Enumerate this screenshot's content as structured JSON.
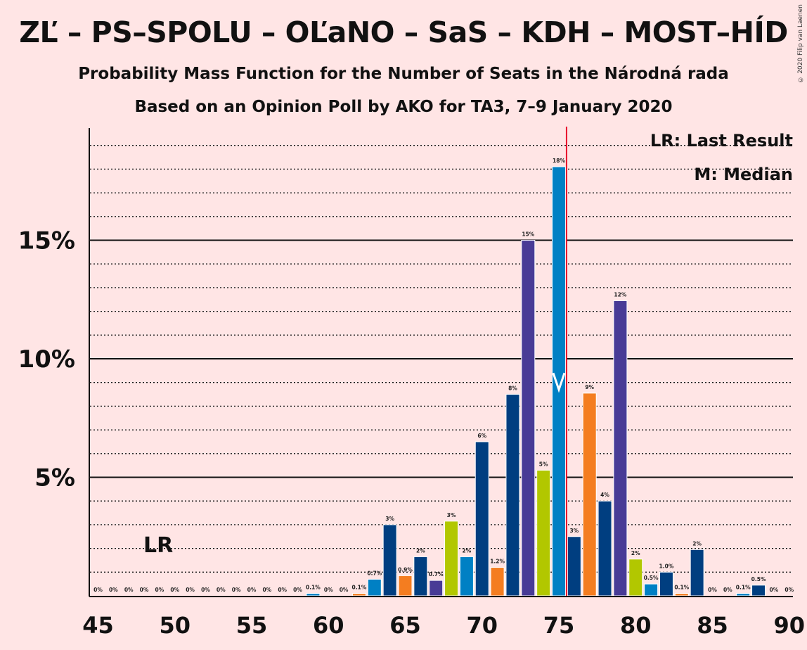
{
  "title": "ZĽ – PS–SPOLU – OĽaNO – SaS – KDH – MOST–HÍD",
  "subtitle1": "Probability Mass Function for the Number of Seats in the Národná rada",
  "subtitle2": "Based on an Opinion Poll by AKO for TA3, 7–9 January 2020",
  "copyright": "© 2020 Filip van Laenen",
  "legend": {
    "lr": "LR: Last Result",
    "m": "M: Median"
  },
  "lr_label": "LR",
  "median_label": "M",
  "colors": {
    "background": "#ffe5e5",
    "last_result_line": "#e8002a",
    "bar_palette": [
      "#0080c4",
      "#f47d20",
      "#003e80",
      "#483b96",
      "#b2c700",
      "#0069b1"
    ]
  },
  "chart_data": {
    "type": "bar",
    "xlabel": "",
    "ylabel": "",
    "xlim": [
      45,
      90
    ],
    "ylim": [
      0,
      19
    ],
    "y_ticks": [
      {
        "value": 5,
        "label": "5%"
      },
      {
        "value": 10,
        "label": "10%"
      },
      {
        "value": 15,
        "label": "15%"
      }
    ],
    "x_ticks": [
      45,
      50,
      55,
      60,
      65,
      70,
      75,
      80,
      85,
      90
    ],
    "last_result": 75.5,
    "median": 75,
    "lr_mark_x": 49,
    "bars": [
      {
        "x": 45,
        "value": 0,
        "label": "0%",
        "color": "#0080c4"
      },
      {
        "x": 46,
        "value": 0,
        "label": "0%",
        "color": "#0080c4"
      },
      {
        "x": 47,
        "value": 0,
        "label": "0%",
        "color": "#0080c4"
      },
      {
        "x": 48,
        "value": 0,
        "label": "0%",
        "color": "#0080c4"
      },
      {
        "x": 49,
        "value": 0,
        "label": "0%",
        "color": "#0080c4"
      },
      {
        "x": 50,
        "value": 0,
        "label": "0%",
        "color": "#0080c4"
      },
      {
        "x": 51,
        "value": 0,
        "label": "0%",
        "color": "#0080c4"
      },
      {
        "x": 52,
        "value": 0,
        "label": "0%",
        "color": "#0080c4"
      },
      {
        "x": 53,
        "value": 0,
        "label": "0%",
        "color": "#0080c4"
      },
      {
        "x": 54,
        "value": 0,
        "label": "0%",
        "color": "#0080c4"
      },
      {
        "x": 55,
        "value": 0,
        "label": "0%",
        "color": "#0080c4"
      },
      {
        "x": 56,
        "value": 0,
        "label": "0%",
        "color": "#0080c4"
      },
      {
        "x": 57,
        "value": 0,
        "label": "0%",
        "color": "#0080c4"
      },
      {
        "x": 58,
        "value": 0,
        "label": "0%",
        "color": "#0080c4"
      },
      {
        "x": 59,
        "value": 0.1,
        "label": "0.1%",
        "color": "#0080c4"
      },
      {
        "x": 60,
        "value": 0,
        "label": "0%",
        "color": "#0080c4"
      },
      {
        "x": 61,
        "value": 0,
        "label": "0%",
        "color": "#0080c4"
      },
      {
        "x": 62,
        "value": 0.1,
        "label": "0.1%",
        "color": "#f47d20"
      },
      {
        "x": 63,
        "value": 0.7,
        "label": "0.7%",
        "color": "#0080c4"
      },
      {
        "x": 64,
        "value": 3.0,
        "label": "3%",
        "color": "#003e80"
      },
      {
        "x": 65,
        "value": 0.85,
        "label": "0.9%",
        "color": "#f47d20"
      },
      {
        "x": 66,
        "value": 1.65,
        "label": "2%",
        "color": "#003e80"
      },
      {
        "x": 67,
        "value": 0.65,
        "label": "0.7%",
        "color": "#483b96"
      },
      {
        "x": 68,
        "value": 3.15,
        "label": "3%",
        "color": "#b2c700"
      },
      {
        "x": 69,
        "value": 1.65,
        "label": "2%",
        "color": "#0080c4"
      },
      {
        "x": 70,
        "value": 6.5,
        "label": "6%",
        "color": "#003e80"
      },
      {
        "x": 71,
        "value": 1.2,
        "label": "1.2%",
        "color": "#f47d20"
      },
      {
        "x": 72,
        "value": 8.5,
        "label": "8%",
        "color": "#003e80"
      },
      {
        "x": 73,
        "value": 15.0,
        "label": "15%",
        "color": "#483b96"
      },
      {
        "x": 74,
        "value": 5.3,
        "label": "5%",
        "color": "#b2c700"
      },
      {
        "x": 75,
        "value": 18.1,
        "label": "18%",
        "color": "#0080c4"
      },
      {
        "x": 76,
        "value": 2.5,
        "label": "3%",
        "color": "#003e80"
      },
      {
        "x": 77,
        "value": 8.55,
        "label": "9%",
        "color": "#f47d20"
      },
      {
        "x": 78,
        "value": 4.0,
        "label": "4%",
        "color": "#003e80"
      },
      {
        "x": 79,
        "value": 12.45,
        "label": "12%",
        "color": "#483b96"
      },
      {
        "x": 80,
        "value": 1.55,
        "label": "2%",
        "color": "#b2c700"
      },
      {
        "x": 81,
        "value": 0.5,
        "label": "0.5%",
        "color": "#0080c4"
      },
      {
        "x": 82,
        "value": 1.0,
        "label": "1.0%",
        "color": "#003e80"
      },
      {
        "x": 83,
        "value": 0.1,
        "label": "0.1%",
        "color": "#f47d20"
      },
      {
        "x": 84,
        "value": 1.95,
        "label": "2%",
        "color": "#003e80"
      },
      {
        "x": 85,
        "value": 0,
        "label": "0%",
        "color": "#0080c4"
      },
      {
        "x": 86,
        "value": 0,
        "label": "0%",
        "color": "#0080c4"
      },
      {
        "x": 87,
        "value": 0.1,
        "label": "0.1%",
        "color": "#0080c4"
      },
      {
        "x": 88,
        "value": 0.45,
        "label": "0.5%",
        "color": "#003e80"
      },
      {
        "x": 89,
        "value": 0,
        "label": "0%",
        "color": "#0080c4"
      },
      {
        "x": 90,
        "value": 0,
        "label": "0%",
        "color": "#0080c4"
      }
    ]
  }
}
